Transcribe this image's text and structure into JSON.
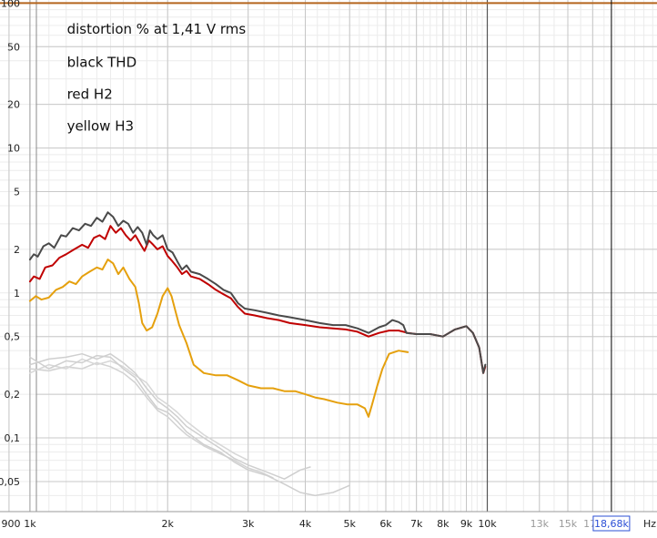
{
  "chart_data": {
    "type": "line",
    "x_scale": "log",
    "y_scale": "log",
    "xlim": [
      860,
      23500
    ],
    "ylim": [
      0.031,
      105
    ],
    "grid": true,
    "y_ticks": [
      {
        "v": 100,
        "label": "100"
      },
      {
        "v": 50,
        "label": "50"
      },
      {
        "v": 20,
        "label": "20"
      },
      {
        "v": 10,
        "label": "10"
      },
      {
        "v": 5,
        "label": "5"
      },
      {
        "v": 2,
        "label": "2"
      },
      {
        "v": 1,
        "label": "1"
      },
      {
        "v": 0.5,
        "label": "0,5"
      },
      {
        "v": 0.2,
        "label": "0,2"
      },
      {
        "v": 0.1,
        "label": "0,1"
      },
      {
        "v": 0.05,
        "label": "0,05"
      }
    ],
    "x_ticks": [
      {
        "v": 900,
        "label": "900",
        "dim": false
      },
      {
        "v": 1000,
        "label": "1k",
        "dim": false
      },
      {
        "v": 2000,
        "label": "2k",
        "dim": false
      },
      {
        "v": 3000,
        "label": "3k",
        "dim": false
      },
      {
        "v": 4000,
        "label": "4k",
        "dim": false
      },
      {
        "v": 5000,
        "label": "5k",
        "dim": false
      },
      {
        "v": 6000,
        "label": "6k",
        "dim": false
      },
      {
        "v": 7000,
        "label": "7k",
        "dim": false
      },
      {
        "v": 8000,
        "label": "8k",
        "dim": false
      },
      {
        "v": 9000,
        "label": "9k",
        "dim": false
      },
      {
        "v": 10000,
        "label": "10k",
        "dim": false
      },
      {
        "v": 13000,
        "label": "13k",
        "dim": true
      },
      {
        "v": 15000,
        "label": "15k",
        "dim": true
      },
      {
        "v": 17000,
        "label": "17k",
        "dim": true
      }
    ],
    "x_unit": "Hz",
    "cursor": {
      "x": 18680,
      "readout": "18,68k"
    },
    "annotations": [
      {
        "text": "distortion %    at 1,41 V rms",
        "x": 1050,
        "y": 66
      },
      {
        "text": "black THD",
        "x": 1050,
        "y": 39
      },
      {
        "text": "red H2",
        "x": 1050,
        "y": 23.5
      },
      {
        "text": "yellow H3",
        "x": 1050,
        "y": 14.2
      }
    ],
    "series": [
      {
        "name": "",
        "color": "#b5651d",
        "width": 2,
        "points": [
          [
            860,
            100
          ],
          [
            23500,
            100
          ]
        ]
      },
      {
        "name": "THD",
        "color": "#4a4a4a",
        "width": 2,
        "points": [
          [
            1000,
            1.7
          ],
          [
            1020,
            1.85
          ],
          [
            1040,
            1.78
          ],
          [
            1070,
            2.1
          ],
          [
            1100,
            2.2
          ],
          [
            1130,
            2.05
          ],
          [
            1170,
            2.5
          ],
          [
            1200,
            2.45
          ],
          [
            1240,
            2.8
          ],
          [
            1280,
            2.7
          ],
          [
            1320,
            3.0
          ],
          [
            1360,
            2.9
          ],
          [
            1400,
            3.3
          ],
          [
            1440,
            3.1
          ],
          [
            1480,
            3.6
          ],
          [
            1520,
            3.35
          ],
          [
            1560,
            2.9
          ],
          [
            1600,
            3.15
          ],
          [
            1640,
            3.0
          ],
          [
            1680,
            2.6
          ],
          [
            1720,
            2.85
          ],
          [
            1760,
            2.6
          ],
          [
            1800,
            2.15
          ],
          [
            1830,
            2.7
          ],
          [
            1860,
            2.5
          ],
          [
            1900,
            2.35
          ],
          [
            1950,
            2.5
          ],
          [
            2000,
            2.0
          ],
          [
            2050,
            1.9
          ],
          [
            2100,
            1.65
          ],
          [
            2150,
            1.45
          ],
          [
            2200,
            1.55
          ],
          [
            2250,
            1.4
          ],
          [
            2350,
            1.35
          ],
          [
            2450,
            1.25
          ],
          [
            2550,
            1.15
          ],
          [
            2650,
            1.05
          ],
          [
            2750,
            1.0
          ],
          [
            2850,
            0.85
          ],
          [
            2950,
            0.78
          ],
          [
            3100,
            0.76
          ],
          [
            3300,
            0.73
          ],
          [
            3500,
            0.7
          ],
          [
            3700,
            0.68
          ],
          [
            4000,
            0.65
          ],
          [
            4300,
            0.62
          ],
          [
            4600,
            0.6
          ],
          [
            4900,
            0.6
          ],
          [
            5200,
            0.57
          ],
          [
            5500,
            0.53
          ],
          [
            5800,
            0.58
          ],
          [
            6000,
            0.6
          ],
          [
            6200,
            0.65
          ],
          [
            6400,
            0.63
          ],
          [
            6550,
            0.6
          ],
          [
            6650,
            0.53
          ],
          [
            7000,
            0.52
          ],
          [
            7500,
            0.52
          ],
          [
            8000,
            0.5
          ],
          [
            8500,
            0.56
          ],
          [
            9000,
            0.59
          ],
          [
            9300,
            0.53
          ],
          [
            9600,
            0.42
          ],
          [
            9800,
            0.28
          ],
          [
            9900,
            0.32
          ]
        ]
      },
      {
        "name": "H2",
        "color": "#c00000",
        "width": 2,
        "points": [
          [
            1000,
            1.2
          ],
          [
            1020,
            1.3
          ],
          [
            1050,
            1.25
          ],
          [
            1080,
            1.5
          ],
          [
            1120,
            1.55
          ],
          [
            1160,
            1.75
          ],
          [
            1200,
            1.85
          ],
          [
            1250,
            2.0
          ],
          [
            1300,
            2.15
          ],
          [
            1340,
            2.05
          ],
          [
            1380,
            2.4
          ],
          [
            1420,
            2.5
          ],
          [
            1460,
            2.35
          ],
          [
            1500,
            2.9
          ],
          [
            1540,
            2.6
          ],
          [
            1580,
            2.8
          ],
          [
            1620,
            2.5
          ],
          [
            1660,
            2.3
          ],
          [
            1700,
            2.5
          ],
          [
            1740,
            2.2
          ],
          [
            1780,
            1.95
          ],
          [
            1820,
            2.3
          ],
          [
            1860,
            2.15
          ],
          [
            1900,
            2.0
          ],
          [
            1950,
            2.1
          ],
          [
            2000,
            1.8
          ],
          [
            2050,
            1.65
          ],
          [
            2100,
            1.5
          ],
          [
            2150,
            1.35
          ],
          [
            2200,
            1.42
          ],
          [
            2250,
            1.3
          ],
          [
            2350,
            1.25
          ],
          [
            2450,
            1.15
          ],
          [
            2550,
            1.05
          ],
          [
            2650,
            0.98
          ],
          [
            2750,
            0.92
          ],
          [
            2850,
            0.8
          ],
          [
            2950,
            0.72
          ],
          [
            3100,
            0.7
          ],
          [
            3300,
            0.67
          ],
          [
            3500,
            0.65
          ],
          [
            3700,
            0.62
          ],
          [
            4000,
            0.6
          ],
          [
            4300,
            0.58
          ],
          [
            4600,
            0.57
          ],
          [
            4900,
            0.56
          ],
          [
            5200,
            0.54
          ],
          [
            5500,
            0.5
          ],
          [
            5800,
            0.53
          ],
          [
            6100,
            0.55
          ],
          [
            6400,
            0.55
          ],
          [
            6700,
            0.53
          ],
          [
            7000,
            0.52
          ],
          [
            7500,
            0.52
          ],
          [
            8000,
            0.5
          ],
          [
            8500,
            0.56
          ],
          [
            9000,
            0.59
          ],
          [
            9300,
            0.53
          ],
          [
            9600,
            0.42
          ],
          [
            9800,
            0.28
          ],
          [
            9900,
            0.31
          ]
        ]
      },
      {
        "name": "H3",
        "color": "#e5a00d",
        "width": 2,
        "points": [
          [
            1000,
            0.88
          ],
          [
            1030,
            0.95
          ],
          [
            1060,
            0.9
          ],
          [
            1100,
            0.93
          ],
          [
            1140,
            1.05
          ],
          [
            1180,
            1.1
          ],
          [
            1220,
            1.2
          ],
          [
            1260,
            1.15
          ],
          [
            1300,
            1.3
          ],
          [
            1350,
            1.4
          ],
          [
            1400,
            1.5
          ],
          [
            1440,
            1.45
          ],
          [
            1480,
            1.7
          ],
          [
            1520,
            1.6
          ],
          [
            1560,
            1.35
          ],
          [
            1600,
            1.5
          ],
          [
            1650,
            1.25
          ],
          [
            1700,
            1.1
          ],
          [
            1730,
            0.85
          ],
          [
            1760,
            0.62
          ],
          [
            1800,
            0.55
          ],
          [
            1850,
            0.58
          ],
          [
            1900,
            0.72
          ],
          [
            1950,
            0.95
          ],
          [
            2000,
            1.08
          ],
          [
            2040,
            0.95
          ],
          [
            2080,
            0.75
          ],
          [
            2120,
            0.6
          ],
          [
            2200,
            0.45
          ],
          [
            2280,
            0.32
          ],
          [
            2400,
            0.28
          ],
          [
            2550,
            0.27
          ],
          [
            2700,
            0.27
          ],
          [
            2850,
            0.25
          ],
          [
            3000,
            0.23
          ],
          [
            3200,
            0.22
          ],
          [
            3400,
            0.22
          ],
          [
            3600,
            0.21
          ],
          [
            3800,
            0.21
          ],
          [
            4000,
            0.2
          ],
          [
            4200,
            0.19
          ],
          [
            4400,
            0.185
          ],
          [
            4700,
            0.175
          ],
          [
            4950,
            0.17
          ],
          [
            5200,
            0.17
          ],
          [
            5400,
            0.16
          ],
          [
            5500,
            0.14
          ],
          [
            5600,
            0.17
          ],
          [
            5750,
            0.23
          ],
          [
            5900,
            0.3
          ],
          [
            6100,
            0.38
          ],
          [
            6400,
            0.4
          ],
          [
            6700,
            0.39
          ]
        ]
      },
      {
        "name": "",
        "color": "#cfcfcf",
        "width": 1.5,
        "points": [
          [
            1000,
            0.36
          ],
          [
            1100,
            0.3
          ],
          [
            1200,
            0.34
          ],
          [
            1300,
            0.33
          ],
          [
            1400,
            0.37
          ],
          [
            1500,
            0.36
          ],
          [
            1600,
            0.3
          ],
          [
            1700,
            0.26
          ],
          [
            1800,
            0.2
          ],
          [
            1900,
            0.16
          ],
          [
            2000,
            0.15
          ],
          [
            2100,
            0.13
          ],
          [
            2200,
            0.11
          ],
          [
            2400,
            0.09
          ],
          [
            2600,
            0.08
          ],
          [
            2800,
            0.068
          ],
          [
            3000,
            0.06
          ],
          [
            3300,
            0.055
          ],
          [
            3600,
            0.048
          ],
          [
            3900,
            0.042
          ],
          [
            4200,
            0.04
          ],
          [
            4600,
            0.042
          ],
          [
            5000,
            0.047
          ]
        ]
      },
      {
        "name": "",
        "color": "#cfcfcf",
        "width": 1.5,
        "points": [
          [
            1000,
            0.32
          ],
          [
            1100,
            0.35
          ],
          [
            1200,
            0.36
          ],
          [
            1300,
            0.38
          ],
          [
            1400,
            0.35
          ],
          [
            1500,
            0.38
          ],
          [
            1600,
            0.33
          ],
          [
            1700,
            0.28
          ],
          [
            1800,
            0.22
          ],
          [
            1900,
            0.18
          ],
          [
            2000,
            0.16
          ],
          [
            2100,
            0.14
          ],
          [
            2200,
            0.12
          ],
          [
            2400,
            0.1
          ],
          [
            2600,
            0.085
          ],
          [
            2800,
            0.072
          ],
          [
            3000,
            0.065
          ],
          [
            3300,
            0.058
          ],
          [
            3600,
            0.052
          ],
          [
            3900,
            0.06
          ],
          [
            4100,
            0.063
          ]
        ]
      },
      {
        "name": "",
        "color": "#d7d7d7",
        "width": 1.5,
        "points": [
          [
            1000,
            0.28
          ],
          [
            1100,
            0.32
          ],
          [
            1200,
            0.3
          ],
          [
            1300,
            0.35
          ],
          [
            1400,
            0.32
          ],
          [
            1500,
            0.34
          ],
          [
            1600,
            0.31
          ],
          [
            1700,
            0.27
          ],
          [
            1800,
            0.24
          ],
          [
            1900,
            0.19
          ],
          [
            2000,
            0.17
          ],
          [
            2100,
            0.15
          ],
          [
            2200,
            0.13
          ],
          [
            2400,
            0.105
          ],
          [
            2600,
            0.09
          ],
          [
            2800,
            0.078
          ],
          [
            3000,
            0.07
          ]
        ]
      },
      {
        "name": "",
        "color": "#d2d2d2",
        "width": 1.5,
        "points": [
          [
            1000,
            0.3
          ],
          [
            1100,
            0.29
          ],
          [
            1200,
            0.31
          ],
          [
            1300,
            0.3
          ],
          [
            1400,
            0.33
          ],
          [
            1500,
            0.31
          ],
          [
            1600,
            0.28
          ],
          [
            1700,
            0.24
          ],
          [
            1800,
            0.19
          ],
          [
            1900,
            0.155
          ],
          [
            2000,
            0.14
          ],
          [
            2100,
            0.12
          ],
          [
            2200,
            0.105
          ],
          [
            2400,
            0.088
          ],
          [
            2600,
            0.078
          ],
          [
            2800,
            0.07
          ],
          [
            3000,
            0.062
          ],
          [
            3200,
            0.058
          ],
          [
            3400,
            0.053
          ]
        ]
      }
    ]
  }
}
